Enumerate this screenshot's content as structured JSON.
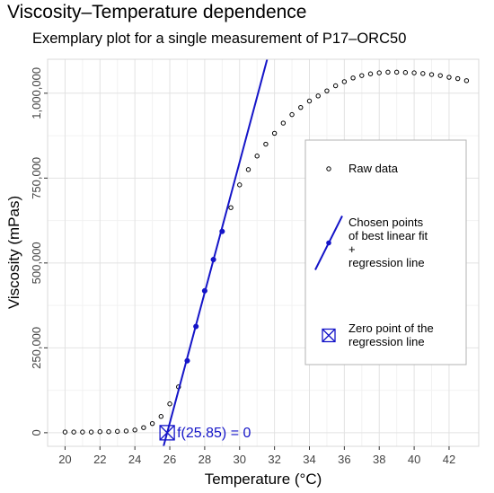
{
  "chart_data": {
    "type": "scatter",
    "title": "Viscosity–Temperature dependence",
    "subtitle": "Exemplary plot for a single measurement of P17–ORC50",
    "xlabel": "Temperature (°C)",
    "ylabel": "Viscosity (mPas)",
    "xlim": [
      19.0,
      43.7
    ],
    "ylim": [
      -40000,
      1100000
    ],
    "x_ticks": [
      20,
      22,
      24,
      26,
      28,
      30,
      32,
      34,
      36,
      38,
      40,
      42
    ],
    "x_tick_labels": [
      "20",
      "22",
      "24",
      "26",
      "28",
      "30",
      "32",
      "34",
      "36",
      "38",
      "40",
      "42"
    ],
    "y_ticks": [
      0,
      250000,
      500000,
      750000,
      1000000
    ],
    "y_tick_labels": [
      "0",
      "250,000",
      "500,000",
      "750,000",
      "1,000,000"
    ],
    "grid": true,
    "legend_position": "right",
    "series": [
      {
        "name": "Raw data",
        "marker": "open-circle",
        "color": "#000000",
        "x": [
          20,
          20.5,
          21,
          21.5,
          22,
          22.5,
          23,
          23.5,
          24,
          24.5,
          25,
          25.5,
          26,
          26.5,
          27,
          27.5,
          28,
          28.5,
          29,
          29.5,
          30,
          30.5,
          31,
          31.5,
          32,
          32.5,
          33,
          33.5,
          34,
          34.5,
          35,
          35.5,
          36,
          36.5,
          37,
          37.5,
          38,
          38.5,
          39,
          39.5,
          40,
          40.5,
          41,
          41.5,
          42,
          42.5,
          43
        ],
        "y": [
          2000,
          2000,
          2000,
          2000,
          3000,
          3000,
          4000,
          5000,
          8000,
          15000,
          27000,
          48000,
          85000,
          135000,
          212000,
          313000,
          418000,
          510000,
          593000,
          663000,
          730000,
          775000,
          815000,
          850000,
          882000,
          912000,
          937000,
          958000,
          977000,
          992000,
          1007000,
          1022000,
          1034000,
          1045000,
          1052000,
          1057000,
          1060000,
          1062000,
          1062000,
          1061000,
          1060000,
          1058000,
          1055000,
          1052000,
          1047000,
          1043000,
          1037000
        ]
      },
      {
        "name": "Chosen points of best linear fit + regression line",
        "marker": "filled-circle",
        "color": "#1515c8",
        "x": [
          27,
          27.5,
          28,
          28.5,
          29
        ],
        "y": [
          212000,
          313000,
          418000,
          510000,
          593000
        ],
        "line": {
          "slope": 192000,
          "intercept": -4963200,
          "x_range": [
            25.5,
            31.87
          ]
        }
      }
    ],
    "zero_point": {
      "name": "Zero point of the regression line",
      "x": 25.85,
      "y": 0,
      "label": "f(25.85) = 0",
      "color": "#1515c8"
    },
    "legend": [
      {
        "key": "raw",
        "lines": [
          "Raw data"
        ]
      },
      {
        "key": "fit",
        "lines": [
          "Chosen points",
          "of best linear fit",
          "+",
          "regression line"
        ]
      },
      {
        "key": "zero",
        "lines": [
          "Zero point of the",
          "regression line"
        ]
      }
    ]
  }
}
